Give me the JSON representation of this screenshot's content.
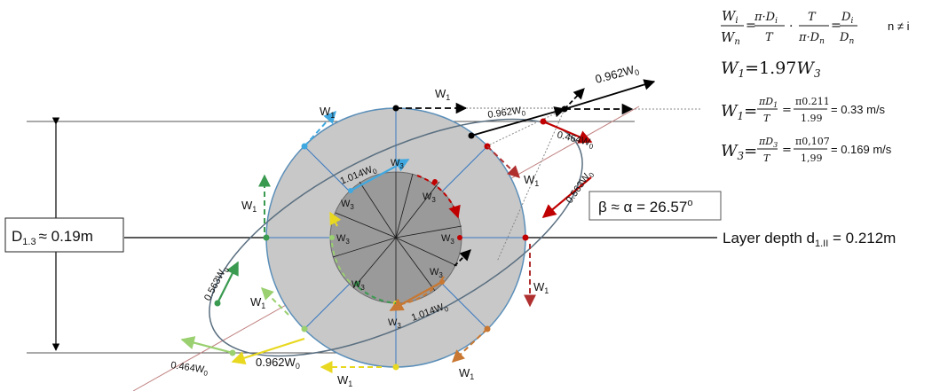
{
  "labels": {
    "diameter": "D",
    "diameter_sub": "1.3",
    "diameter_value": "≈ 0.19m",
    "layer_depth": "Layer depth d",
    "layer_depth_sub": "1.II",
    "layer_depth_value": " = 0.212m",
    "angle": "β ≈ α = 26.57",
    "angle_unit": "o"
  },
  "vector_labels": {
    "w1": "W",
    "w1_sub": "1",
    "w3": "W",
    "w3_sub": "3",
    "v0962": "0.962W",
    "v0464": "0.464W",
    "v0563": "0.563W",
    "v1014": "1.014W",
    "w0_sub": "0"
  },
  "formulas": {
    "ratio": {
      "wi": "W",
      "wi_sub": "i",
      "wn": "W",
      "wn_sub": "n",
      "eq": "=",
      "pi_di": "π·D",
      "pi_di_sub": "i",
      "t": "T",
      "dot": "·",
      "pi_dn": "π·D",
      "pi_dn_sub": "n",
      "di": "D",
      "di_sub": "i",
      "dn": "D",
      "dn_sub": "n",
      "cond": "n ≠ i"
    },
    "w1_eq": {
      "lhs": "W",
      "lhs_sub": "1",
      "rhs": "=1.97",
      "rhs_w": "W",
      "rhs_sub": "3"
    },
    "w1_calc": {
      "lhs": "W",
      "lhs_sub": "1",
      "eq": "=",
      "num1": "πD",
      "num1_sub": "1",
      "den1": "T",
      "num2": "π0.211",
      "den2": "1.99",
      "result": "= 0.33 m/s"
    },
    "w3_calc": {
      "lhs": "W",
      "lhs_sub": "3",
      "eq": "=",
      "num1": "πD",
      "num1_sub": "3",
      "den1": "T",
      "num2": "π0,107",
      "den2": "1,99",
      "result": "= 0.169 m/s"
    }
  },
  "colors": {
    "outer_disk": "#c8c8c8",
    "outer_edge": "#5b8fb9",
    "inner_disk": "#9a9a9a",
    "spoke": "#3a78c0",
    "red": "#c00000",
    "dark_red": "#b03030",
    "orange": "#c87832",
    "yellow": "#f0e020",
    "green": "#3a9a50",
    "light_green": "#9ad070",
    "cyan": "#40a8e0",
    "black": "#000000"
  }
}
